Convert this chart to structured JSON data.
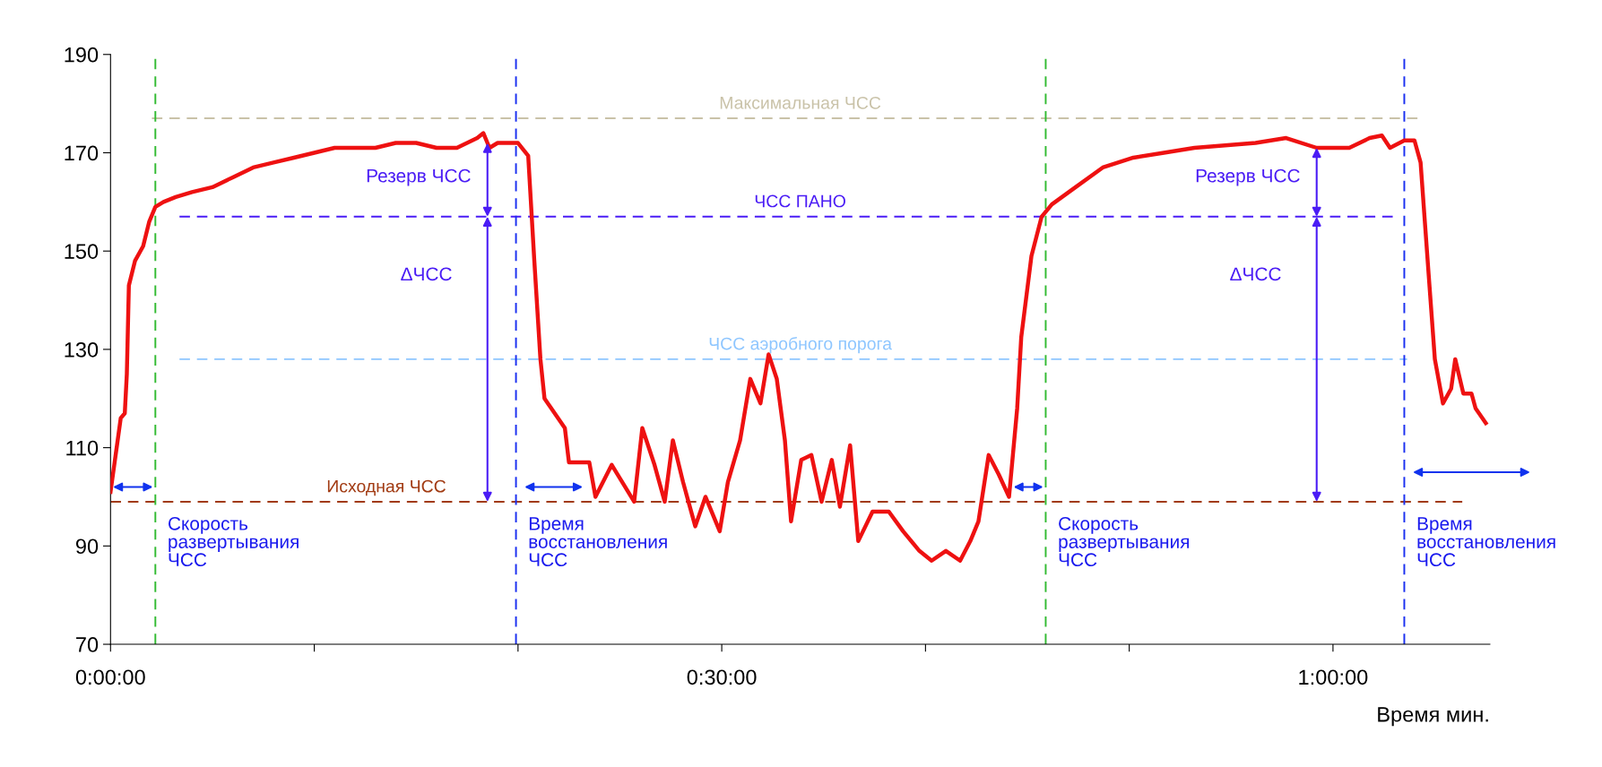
{
  "chart_data": {
    "type": "line",
    "xlabel": "Время мин.",
    "xlim": [
      0,
      67.7
    ],
    "xticks": [
      {
        "value": 0,
        "label": "0:00:00"
      },
      {
        "value": 10,
        "label": null
      },
      {
        "value": 20,
        "label": null
      },
      {
        "value": 30,
        "label": "0:30:00"
      },
      {
        "value": 40,
        "label": null
      },
      {
        "value": 50,
        "label": null
      },
      {
        "value": 60,
        "label": "1:00:00"
      }
    ],
    "ylim": [
      70,
      190
    ],
    "yticks": [
      70,
      90,
      110,
      130,
      150,
      170,
      190
    ],
    "grid": false,
    "legend": false,
    "marker": "none",
    "line_style": "solid",
    "series": [
      {
        "color": "#ee1111",
        "x": [
          0,
          0.3,
          0.5,
          0.7,
          0.8,
          0.9,
          1.2,
          1.6,
          1.9,
          2.2,
          2.6,
          3.2,
          4,
          5,
          6,
          7,
          8,
          9,
          10,
          11,
          12,
          13,
          14,
          15,
          16,
          17,
          18,
          18.3,
          18.6,
          19,
          20,
          20.5,
          20.8,
          21.1,
          21.3,
          22.3,
          22.5,
          23.5,
          23.8,
          24.6,
          25.7,
          26.1,
          26.7,
          27.2,
          27.6,
          28.1,
          28.7,
          29.2,
          29.9,
          30.3,
          30.9,
          31.4,
          31.9,
          32.3,
          32.7,
          33.1,
          33.4,
          33.9,
          34.4,
          34.9,
          35.4,
          35.8,
          36.3,
          36.7,
          37.4,
          38.2,
          38.9,
          39.7,
          40.3,
          41.0,
          41.7,
          42.2,
          42.6,
          43.1,
          43.6,
          44.1,
          44.5,
          44.7,
          45.2,
          45.7,
          46.2,
          47.2,
          48.7,
          50.2,
          51.7,
          53.2,
          54.7,
          56.2,
          57.7,
          59.2,
          60.8,
          61.8,
          62.4,
          62.8,
          63.5,
          64.0,
          64.3,
          64.7,
          65.0,
          65.4,
          65.8,
          66.0,
          66.4,
          66.8,
          67.0,
          67.5
        ],
        "values": [
          101,
          110,
          116,
          117,
          125,
          143,
          148,
          151,
          156,
          159,
          160,
          161,
          162,
          163,
          165,
          167,
          168,
          169,
          170,
          171,
          171,
          171,
          172,
          172,
          171,
          171,
          173,
          174,
          171,
          172,
          172,
          169.4,
          148,
          128,
          120,
          114,
          107,
          107,
          100,
          106.5,
          99,
          114,
          106.5,
          99,
          111.5,
          103,
          94,
          100,
          93,
          103,
          111.5,
          124,
          119,
          129,
          124,
          111.5,
          95,
          107.5,
          108.5,
          99,
          107.5,
          98,
          110.5,
          91,
          97,
          97,
          93,
          89,
          87,
          89,
          87,
          91,
          95,
          108.5,
          104.5,
          100,
          118,
          132.5,
          149,
          157,
          159.5,
          162.5,
          167,
          169,
          170,
          171,
          171.5,
          172,
          173,
          171,
          171,
          173,
          173.5,
          171,
          172.5,
          172.5,
          168,
          145,
          128,
          119,
          122,
          128,
          121,
          121,
          118,
          115
        ]
      }
    ],
    "ref_lines": [
      {
        "axis": "y",
        "value": 177,
        "label": "Максимальная ЧСС",
        "color": "#c9c2a8",
        "line_style": "dashed"
      },
      {
        "axis": "y",
        "value": 157,
        "label": "ЧСС ПАНО",
        "color": "#4a1cf5",
        "line_style": "dashed"
      },
      {
        "axis": "y",
        "value": 128,
        "label": "ЧСС аэробного порога",
        "color": "#8ec6ff",
        "line_style": "dashed"
      },
      {
        "axis": "y",
        "value": 99,
        "label": "Исходная ЧСС",
        "color": "#a13a12",
        "line_style": "dashed"
      },
      {
        "axis": "x",
        "value": 2.2,
        "color": "#33bb33",
        "line_style": "dashed"
      },
      {
        "axis": "x",
        "value": 19.9,
        "color": "#1a2ff0",
        "line_style": "dashed"
      },
      {
        "axis": "x",
        "value": 45.9,
        "color": "#33bb33",
        "line_style": "dashed"
      },
      {
        "axis": "x",
        "value": 63.5,
        "color": "#1a2ff0",
        "line_style": "dashed"
      }
    ],
    "annotations": [
      {
        "text": "Скорость\nразвертывания\nЧСС",
        "x": 2.2,
        "y": 99
      },
      {
        "text": "Время\nвосстановления\nЧСС",
        "x": 19.9,
        "y": 99
      },
      {
        "text": "Скорость\nразвертывания\nЧСС",
        "x": 45.9,
        "y": 99
      },
      {
        "text": "Время\nвосстановления\nЧСС",
        "x": 63.5,
        "y": 99
      },
      {
        "text": "Резерв ЧСС",
        "x": 18.5,
        "y": 157
      },
      "ΔЧСС",
      {
        "text": "Резерв ЧСС",
        "x": 59.2,
        "y": 157
      },
      "ΔЧСС"
    ]
  }
}
